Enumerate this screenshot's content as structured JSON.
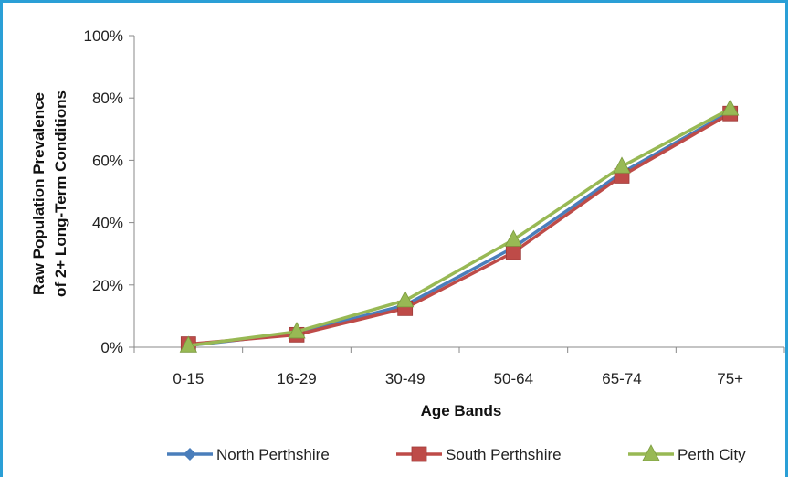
{
  "chart_data": {
    "type": "line",
    "title": "",
    "xlabel": "Age Bands",
    "ylabel_lines": [
      "Raw Population Prevalence",
      "of 2+ Long-Term Conditions"
    ],
    "categories": [
      "0-15",
      "16-29",
      "30-49",
      "50-64",
      "65-74",
      "75+"
    ],
    "ylim": [
      0,
      100
    ],
    "yticks": [
      "0%",
      "20%",
      "40%",
      "60%",
      "80%",
      "100%"
    ],
    "y_tick_values": [
      0,
      20,
      40,
      60,
      80,
      100
    ],
    "grid": false,
    "legend_position": "bottom",
    "series": [
      {
        "name": "North Perthshire",
        "values": [
          0.5,
          4.5,
          13.5,
          32,
          56,
          75.5
        ],
        "color": "#4a7ebb",
        "marker": "diamond"
      },
      {
        "name": "South Perthshire",
        "values": [
          1,
          4,
          12.5,
          30.5,
          55,
          75
        ],
        "color": "#be4b48",
        "marker": "square"
      },
      {
        "name": "Perth City",
        "values": [
          0.5,
          5,
          15,
          34.5,
          58,
          76.5
        ],
        "color": "#98b954",
        "marker": "triangle"
      }
    ]
  }
}
